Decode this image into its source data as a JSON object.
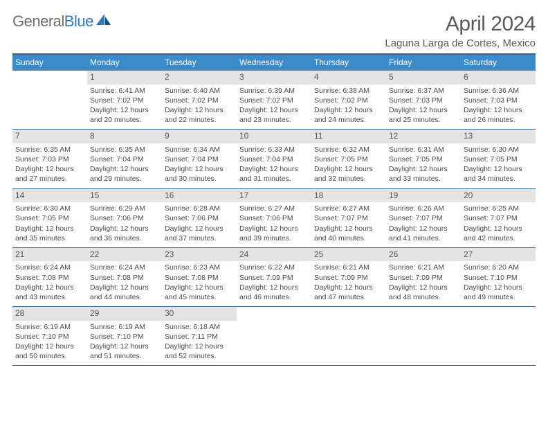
{
  "logo": {
    "text1": "General",
    "text2": "Blue"
  },
  "title": "April 2024",
  "location": "Laguna Larga de Cortes, Mexico",
  "colors": {
    "header_bar": "#3b8bca",
    "border": "#336699",
    "daynum_bg": "#e4e4e4",
    "text": "#4a4a4a",
    "logo_blue": "#2f7abf"
  },
  "weekdays": [
    "Sunday",
    "Monday",
    "Tuesday",
    "Wednesday",
    "Thursday",
    "Friday",
    "Saturday"
  ],
  "weeks": [
    [
      {
        "n": "",
        "lines": []
      },
      {
        "n": "1",
        "lines": [
          "Sunrise: 6:41 AM",
          "Sunset: 7:02 PM",
          "Daylight: 12 hours",
          "and 20 minutes."
        ]
      },
      {
        "n": "2",
        "lines": [
          "Sunrise: 6:40 AM",
          "Sunset: 7:02 PM",
          "Daylight: 12 hours",
          "and 22 minutes."
        ]
      },
      {
        "n": "3",
        "lines": [
          "Sunrise: 6:39 AM",
          "Sunset: 7:02 PM",
          "Daylight: 12 hours",
          "and 23 minutes."
        ]
      },
      {
        "n": "4",
        "lines": [
          "Sunrise: 6:38 AM",
          "Sunset: 7:02 PM",
          "Daylight: 12 hours",
          "and 24 minutes."
        ]
      },
      {
        "n": "5",
        "lines": [
          "Sunrise: 6:37 AM",
          "Sunset: 7:03 PM",
          "Daylight: 12 hours",
          "and 25 minutes."
        ]
      },
      {
        "n": "6",
        "lines": [
          "Sunrise: 6:36 AM",
          "Sunset: 7:03 PM",
          "Daylight: 12 hours",
          "and 26 minutes."
        ]
      }
    ],
    [
      {
        "n": "7",
        "lines": [
          "Sunrise: 6:35 AM",
          "Sunset: 7:03 PM",
          "Daylight: 12 hours",
          "and 27 minutes."
        ]
      },
      {
        "n": "8",
        "lines": [
          "Sunrise: 6:35 AM",
          "Sunset: 7:04 PM",
          "Daylight: 12 hours",
          "and 29 minutes."
        ]
      },
      {
        "n": "9",
        "lines": [
          "Sunrise: 6:34 AM",
          "Sunset: 7:04 PM",
          "Daylight: 12 hours",
          "and 30 minutes."
        ]
      },
      {
        "n": "10",
        "lines": [
          "Sunrise: 6:33 AM",
          "Sunset: 7:04 PM",
          "Daylight: 12 hours",
          "and 31 minutes."
        ]
      },
      {
        "n": "11",
        "lines": [
          "Sunrise: 6:32 AM",
          "Sunset: 7:05 PM",
          "Daylight: 12 hours",
          "and 32 minutes."
        ]
      },
      {
        "n": "12",
        "lines": [
          "Sunrise: 6:31 AM",
          "Sunset: 7:05 PM",
          "Daylight: 12 hours",
          "and 33 minutes."
        ]
      },
      {
        "n": "13",
        "lines": [
          "Sunrise: 6:30 AM",
          "Sunset: 7:05 PM",
          "Daylight: 12 hours",
          "and 34 minutes."
        ]
      }
    ],
    [
      {
        "n": "14",
        "lines": [
          "Sunrise: 6:30 AM",
          "Sunset: 7:05 PM",
          "Daylight: 12 hours",
          "and 35 minutes."
        ]
      },
      {
        "n": "15",
        "lines": [
          "Sunrise: 6:29 AM",
          "Sunset: 7:06 PM",
          "Daylight: 12 hours",
          "and 36 minutes."
        ]
      },
      {
        "n": "16",
        "lines": [
          "Sunrise: 6:28 AM",
          "Sunset: 7:06 PM",
          "Daylight: 12 hours",
          "and 37 minutes."
        ]
      },
      {
        "n": "17",
        "lines": [
          "Sunrise: 6:27 AM",
          "Sunset: 7:06 PM",
          "Daylight: 12 hours",
          "and 39 minutes."
        ]
      },
      {
        "n": "18",
        "lines": [
          "Sunrise: 6:27 AM",
          "Sunset: 7:07 PM",
          "Daylight: 12 hours",
          "and 40 minutes."
        ]
      },
      {
        "n": "19",
        "lines": [
          "Sunrise: 6:26 AM",
          "Sunset: 7:07 PM",
          "Daylight: 12 hours",
          "and 41 minutes."
        ]
      },
      {
        "n": "20",
        "lines": [
          "Sunrise: 6:25 AM",
          "Sunset: 7:07 PM",
          "Daylight: 12 hours",
          "and 42 minutes."
        ]
      }
    ],
    [
      {
        "n": "21",
        "lines": [
          "Sunrise: 6:24 AM",
          "Sunset: 7:08 PM",
          "Daylight: 12 hours",
          "and 43 minutes."
        ]
      },
      {
        "n": "22",
        "lines": [
          "Sunrise: 6:24 AM",
          "Sunset: 7:08 PM",
          "Daylight: 12 hours",
          "and 44 minutes."
        ]
      },
      {
        "n": "23",
        "lines": [
          "Sunrise: 6:23 AM",
          "Sunset: 7:08 PM",
          "Daylight: 12 hours",
          "and 45 minutes."
        ]
      },
      {
        "n": "24",
        "lines": [
          "Sunrise: 6:22 AM",
          "Sunset: 7:09 PM",
          "Daylight: 12 hours",
          "and 46 minutes."
        ]
      },
      {
        "n": "25",
        "lines": [
          "Sunrise: 6:21 AM",
          "Sunset: 7:09 PM",
          "Daylight: 12 hours",
          "and 47 minutes."
        ]
      },
      {
        "n": "26",
        "lines": [
          "Sunrise: 6:21 AM",
          "Sunset: 7:09 PM",
          "Daylight: 12 hours",
          "and 48 minutes."
        ]
      },
      {
        "n": "27",
        "lines": [
          "Sunrise: 6:20 AM",
          "Sunset: 7:10 PM",
          "Daylight: 12 hours",
          "and 49 minutes."
        ]
      }
    ],
    [
      {
        "n": "28",
        "lines": [
          "Sunrise: 6:19 AM",
          "Sunset: 7:10 PM",
          "Daylight: 12 hours",
          "and 50 minutes."
        ]
      },
      {
        "n": "29",
        "lines": [
          "Sunrise: 6:19 AM",
          "Sunset: 7:10 PM",
          "Daylight: 12 hours",
          "and 51 minutes."
        ]
      },
      {
        "n": "30",
        "lines": [
          "Sunrise: 6:18 AM",
          "Sunset: 7:11 PM",
          "Daylight: 12 hours",
          "and 52 minutes."
        ]
      },
      {
        "n": "",
        "lines": []
      },
      {
        "n": "",
        "lines": []
      },
      {
        "n": "",
        "lines": []
      },
      {
        "n": "",
        "lines": []
      }
    ]
  ]
}
